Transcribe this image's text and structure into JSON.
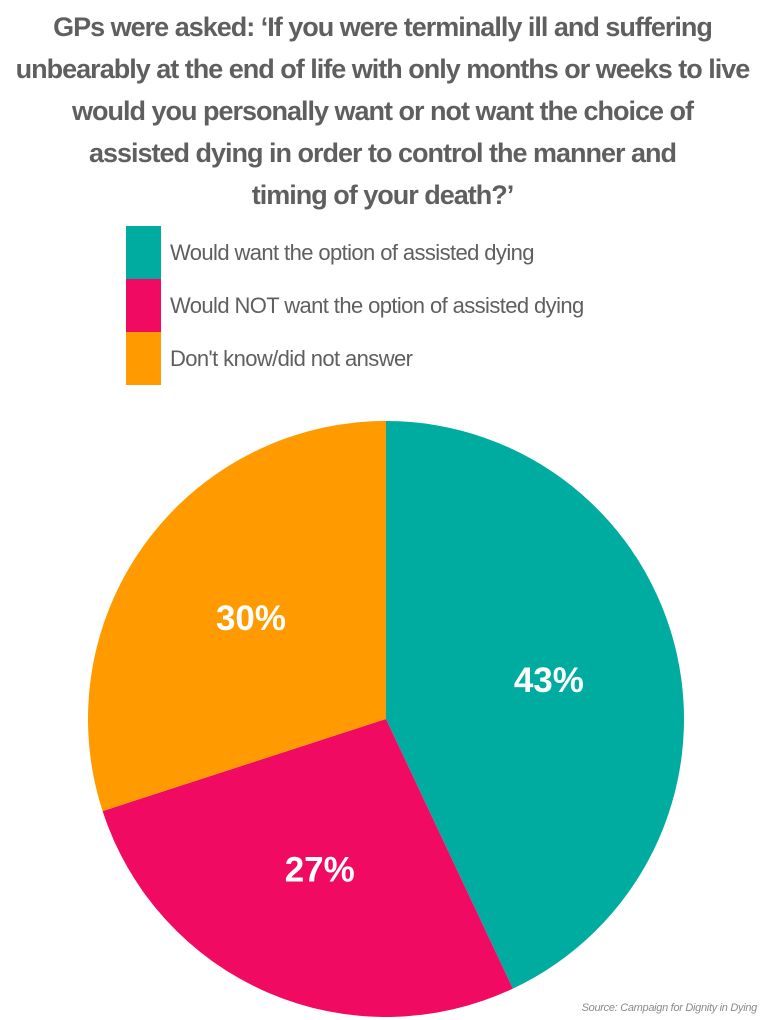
{
  "title": "GPs were asked: ‘If you were terminally ill and suffering\nunbearably at the end of life with only months or weeks to live\nwould you personally want or not want the choice of\nassisted dying in order to control the manner and\ntiming of your death?’",
  "source": "Source: Campaign for Dignity in Dying",
  "chart_data": {
    "type": "pie",
    "title": "GPs were asked: ‘If you were terminally ill and suffering unbearably at the end of life with only months or weeks to live would you personally want or not want the choice of assisted dying in order to control the manner and timing of your death?’",
    "legend_position": "top",
    "slices": [
      {
        "label": "Would want the option of assisted dying",
        "value": 43,
        "display": "43%",
        "color": "#00aca0"
      },
      {
        "label": "Would NOT want the option of assisted dying",
        "value": 27,
        "display": "27%",
        "color": "#f00a62"
      },
      {
        "label": "Don't know/did not answer",
        "value": 30,
        "display": "30%",
        "color": "#ff9a00"
      }
    ]
  }
}
